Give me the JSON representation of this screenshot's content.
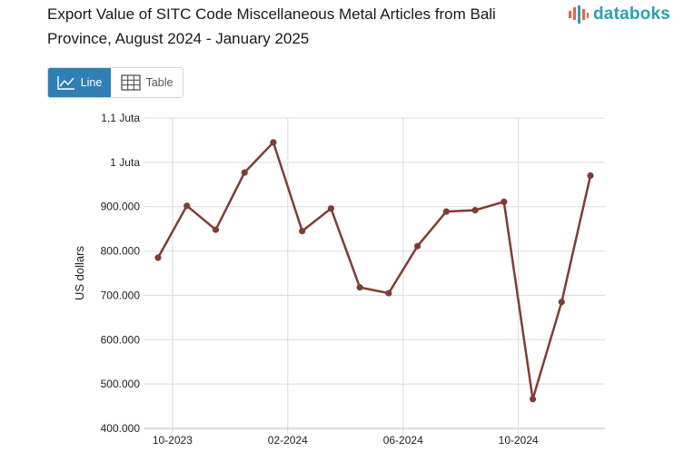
{
  "title": "Export Value of SITC Code Miscellaneous Metal Articles from Bali Province, August 2024 - January 2025",
  "brand": {
    "name": "databoks",
    "color": "#2aa0b5",
    "icon": "bar-logo-icon"
  },
  "tabs": {
    "line_label": "Line",
    "line_icon": "line-chart-icon",
    "table_label": "Table",
    "table_icon": "table-grid-icon",
    "active_color": "#2f7fb5"
  },
  "chart_data": {
    "type": "line",
    "title": "Export Value of SITC Code Miscellaneous Metal Articles from Bali Province, August 2024 - January 2025",
    "xlabel": "",
    "ylabel": "US dollars",
    "ylim": [
      400000,
      1100000
    ],
    "y_ticks": [
      {
        "value": 400000,
        "label": "400.000"
      },
      {
        "value": 500000,
        "label": "500.000"
      },
      {
        "value": 600000,
        "label": "600.000"
      },
      {
        "value": 700000,
        "label": "700.000"
      },
      {
        "value": 800000,
        "label": "800.000"
      },
      {
        "value": 900000,
        "label": "900.000"
      },
      {
        "value": 1000000,
        "label": "1 Juta"
      },
      {
        "value": 1100000,
        "label": "1,1 Juta"
      }
    ],
    "x_ticks": [
      {
        "index": 0,
        "label": "10-2023"
      },
      {
        "index": 4,
        "label": "02-2024"
      },
      {
        "index": 8,
        "label": "06-2024"
      },
      {
        "index": 12,
        "label": "10-2024"
      }
    ],
    "grid": true,
    "series": [
      {
        "name": "Export Value",
        "color": "#7f3d35",
        "x": [
          "10-2023",
          "11-2023",
          "12-2023",
          "01-2024",
          "02-2024",
          "03-2024",
          "04-2024",
          "05-2024",
          "06-2024",
          "07-2024",
          "08-2024",
          "09-2024",
          "10-2024",
          "11-2024",
          "12-2024",
          "01-2025"
        ],
        "values": [
          785000,
          902000,
          848000,
          977000,
          1045000,
          845000,
          896000,
          718000,
          705000,
          811000,
          889000,
          892000,
          911000,
          466000,
          685000,
          970000
        ]
      }
    ]
  }
}
